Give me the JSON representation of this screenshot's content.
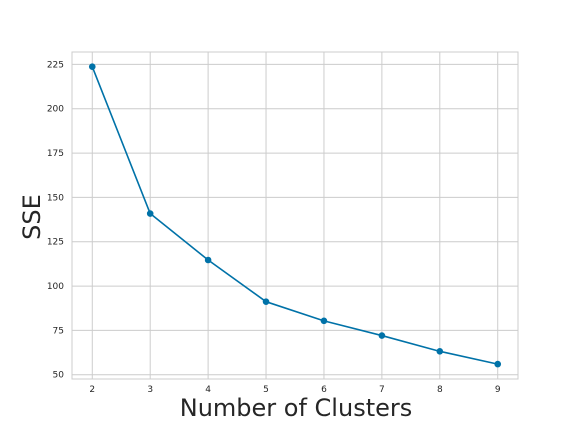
{
  "chart_data": {
    "type": "line",
    "title": "",
    "xlabel": "Number of Clusters",
    "ylabel": "SSE",
    "x": [
      2,
      3,
      4,
      5,
      6,
      7,
      8,
      9
    ],
    "series": [
      {
        "values": [
          223.7,
          140.9,
          114.7,
          91.2,
          80.4,
          72.1,
          63.2,
          56.0
        ],
        "color": "#0072a8"
      }
    ],
    "xticks": [
      "2",
      "3",
      "4",
      "5",
      "6",
      "7",
      "8",
      "9"
    ],
    "yticks": [
      "50",
      "75",
      "100",
      "125",
      "150",
      "175",
      "200",
      "225"
    ],
    "xlim": [
      1.65,
      9.35
    ],
    "ylim": [
      47.6,
      232.0
    ],
    "grid": true,
    "grid_color": "#cccccc",
    "frame_color": "#cccccc",
    "marker": "circle"
  }
}
